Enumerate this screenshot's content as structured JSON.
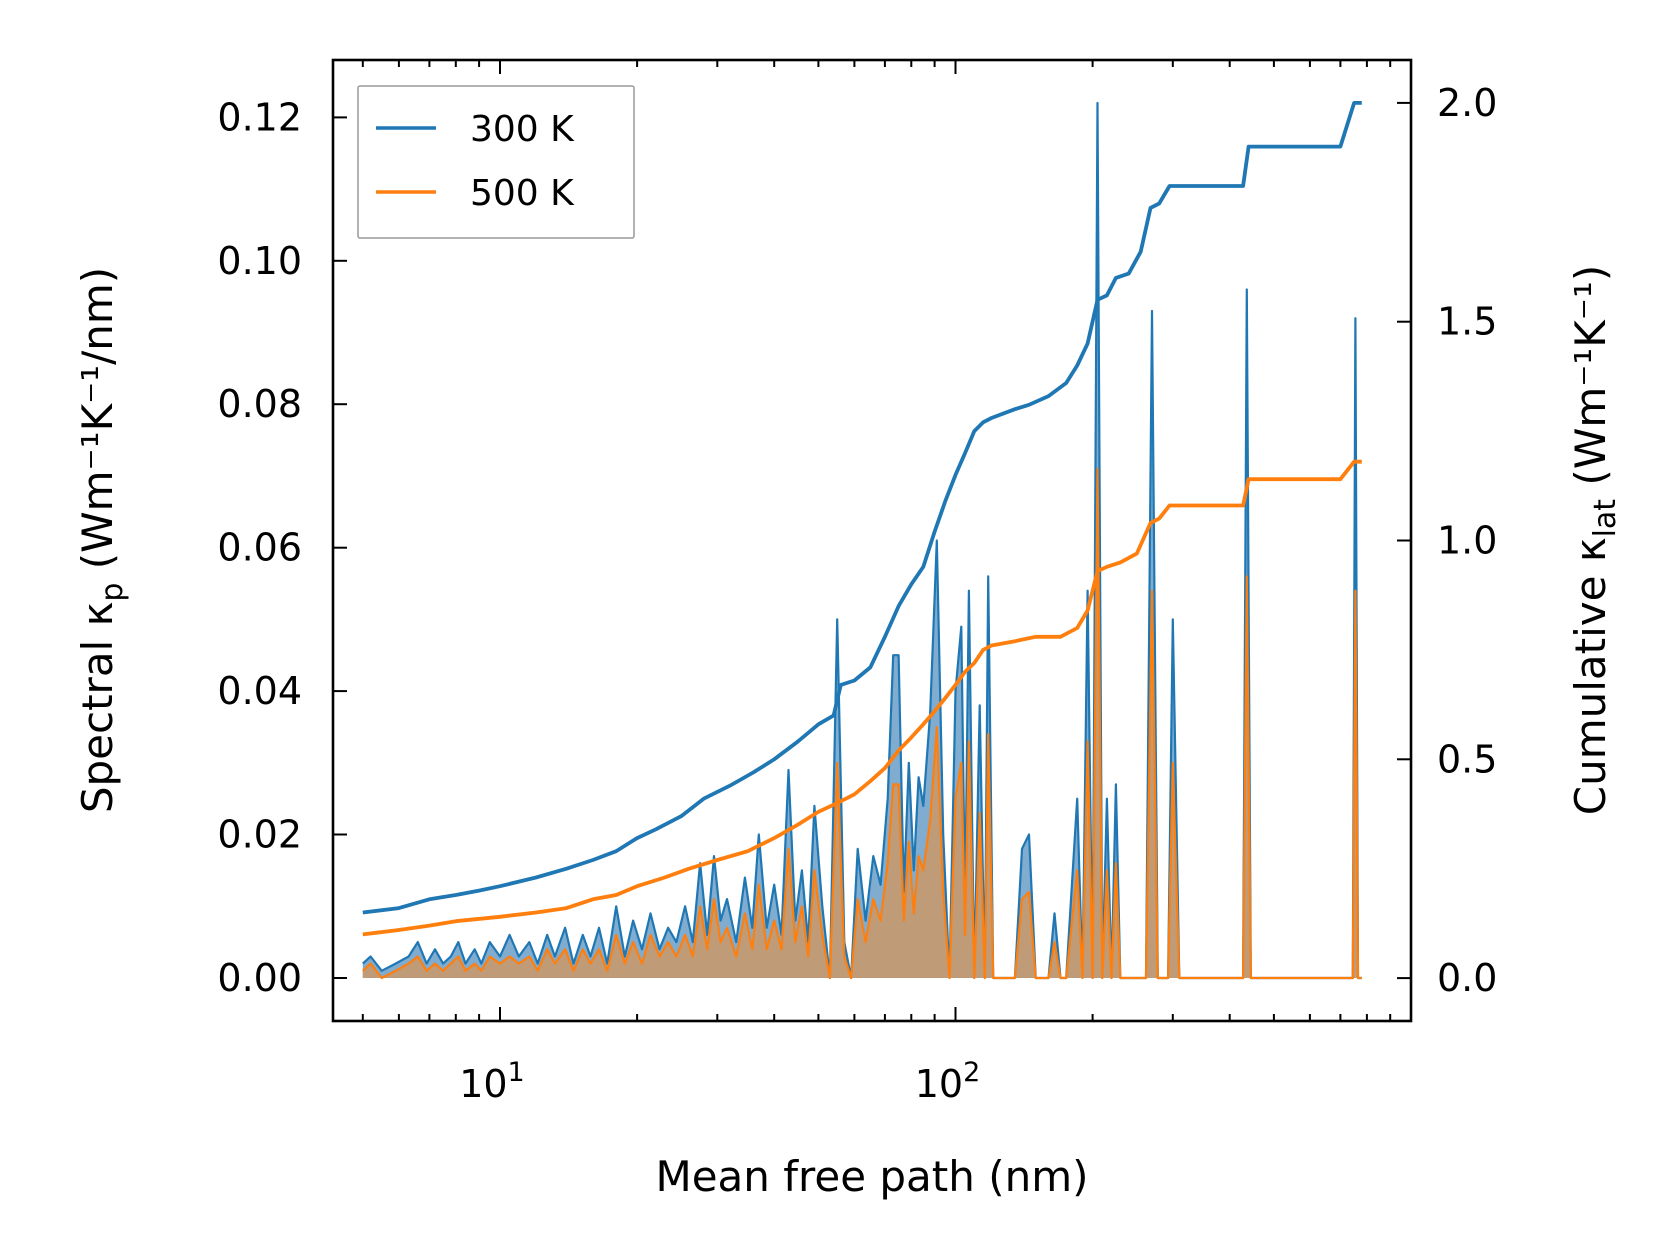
{
  "chart_data": {
    "type": "line",
    "title": "",
    "xlabel": "Mean free path (nm)",
    "ylabel_left": "Spectral κ",
    "ylabel_left_sub": "p",
    "ylabel_left_units": "(Wm⁻¹K⁻¹/nm)",
    "ylabel_right": "Cumulative κ",
    "ylabel_right_sub": "lat",
    "ylabel_right_units": "(Wm⁻¹K⁻¹)",
    "xscale": "log",
    "xlim": [
      4.3,
      1000
    ],
    "ylim_left": [
      -0.006,
      0.128
    ],
    "ylim_right": [
      -0.098,
      2.098
    ],
    "x_ticks": [
      {
        "value": 10,
        "base": "10",
        "exp": "1"
      },
      {
        "value": 100,
        "base": "10",
        "exp": "2"
      }
    ],
    "y_ticks_left": [
      "0.00",
      "0.02",
      "0.04",
      "0.06",
      "0.08",
      "0.10",
      "0.12"
    ],
    "y_ticks_right": [
      "0.0",
      "0.5",
      "1.0",
      "1.5",
      "2.0"
    ],
    "legend": {
      "placement": "top-left",
      "entries": [
        "300 K",
        "500 K"
      ]
    },
    "colors": {
      "300K": "#1f77b4",
      "500K": "#ff7f0e",
      "fill_300K": "#6a9ec8",
      "fill_500K": "#c29a72"
    },
    "spectral_300K": [
      [
        5.0,
        0.002
      ],
      [
        5.2,
        0.003
      ],
      [
        5.5,
        0.001
      ],
      [
        5.9,
        0.002
      ],
      [
        6.3,
        0.003
      ],
      [
        6.6,
        0.005
      ],
      [
        6.9,
        0.002
      ],
      [
        7.2,
        0.004
      ],
      [
        7.5,
        0.002
      ],
      [
        7.8,
        0.003
      ],
      [
        8.1,
        0.005
      ],
      [
        8.4,
        0.002
      ],
      [
        8.8,
        0.004
      ],
      [
        9.1,
        0.002
      ],
      [
        9.5,
        0.005
      ],
      [
        10.0,
        0.003
      ],
      [
        10.5,
        0.006
      ],
      [
        11.0,
        0.003
      ],
      [
        11.6,
        0.005
      ],
      [
        12.1,
        0.002
      ],
      [
        12.7,
        0.006
      ],
      [
        13.2,
        0.003
      ],
      [
        13.9,
        0.007
      ],
      [
        14.5,
        0.002
      ],
      [
        15.2,
        0.006
      ],
      [
        15.8,
        0.003
      ],
      [
        16.5,
        0.007
      ],
      [
        17.2,
        0.002
      ],
      [
        18.0,
        0.01
      ],
      [
        18.8,
        0.003
      ],
      [
        19.6,
        0.008
      ],
      [
        20.5,
        0.004
      ],
      [
        21.4,
        0.009
      ],
      [
        22.4,
        0.004
      ],
      [
        23.4,
        0.007
      ],
      [
        24.4,
        0.005
      ],
      [
        25.5,
        0.01
      ],
      [
        26.5,
        0.005
      ],
      [
        27.5,
        0.016
      ],
      [
        28.5,
        0.006
      ],
      [
        29.5,
        0.017
      ],
      [
        30.5,
        0.008
      ],
      [
        31.5,
        0.011
      ],
      [
        33.0,
        0.005
      ],
      [
        34.5,
        0.014
      ],
      [
        35.8,
        0.007
      ],
      [
        37.0,
        0.02
      ],
      [
        38.5,
        0.007
      ],
      [
        40.0,
        0.013
      ],
      [
        41.5,
        0.006
      ],
      [
        43.0,
        0.029
      ],
      [
        44.5,
        0.008
      ],
      [
        46.0,
        0.015
      ],
      [
        47.5,
        0.005
      ],
      [
        49.0,
        0.024
      ],
      [
        51.0,
        0.01
      ],
      [
        53.0,
        0.0
      ],
      [
        55.0,
        0.05
      ],
      [
        57.0,
        0.005
      ],
      [
        59.0,
        0.0
      ],
      [
        61.0,
        0.018
      ],
      [
        63.5,
        0.008
      ],
      [
        66.0,
        0.017
      ],
      [
        68.5,
        0.013
      ],
      [
        71.0,
        0.025
      ],
      [
        73.0,
        0.045
      ],
      [
        75.0,
        0.045
      ],
      [
        77.0,
        0.012
      ],
      [
        79.0,
        0.03
      ],
      [
        81.0,
        0.015
      ],
      [
        83.0,
        0.028
      ],
      [
        85.0,
        0.024
      ],
      [
        88.0,
        0.037
      ],
      [
        91.0,
        0.061
      ],
      [
        94.0,
        0.02
      ],
      [
        97.0,
        0.0
      ],
      [
        100.0,
        0.04
      ],
      [
        103.0,
        0.049
      ],
      [
        105.0,
        0.01
      ],
      [
        107.0,
        0.054
      ],
      [
        110.0,
        0.0
      ],
      [
        113.0,
        0.038
      ],
      [
        116.0,
        0.0
      ],
      [
        118.0,
        0.056
      ],
      [
        121.0,
        0.0
      ],
      [
        125.0,
        0.0
      ],
      [
        130.0,
        0.0
      ],
      [
        135.0,
        0.0
      ],
      [
        140.0,
        0.018
      ],
      [
        145.0,
        0.02
      ],
      [
        150.0,
        0.0
      ],
      [
        155.0,
        0.0
      ],
      [
        160.0,
        0.0
      ],
      [
        165.0,
        0.009
      ],
      [
        170.0,
        0.0
      ],
      [
        175.0,
        0.0
      ],
      [
        185.0,
        0.025
      ],
      [
        190.0,
        0.0
      ],
      [
        195.0,
        0.054
      ],
      [
        200.0,
        0.0
      ],
      [
        205.0,
        0.122
      ],
      [
        210.0,
        0.0
      ],
      [
        215.0,
        0.025
      ],
      [
        220.0,
        0.0
      ],
      [
        225.0,
        0.027
      ],
      [
        230.0,
        0.0
      ],
      [
        240.0,
        0.0
      ],
      [
        250.0,
        0.0
      ],
      [
        262.0,
        0.0
      ],
      [
        270.0,
        0.093
      ],
      [
        278.0,
        0.0
      ],
      [
        285.0,
        0.0
      ],
      [
        293.0,
        0.0
      ],
      [
        300.0,
        0.05
      ],
      [
        310.0,
        0.0
      ],
      [
        330.0,
        0.0
      ],
      [
        360.0,
        0.0
      ],
      [
        400.0,
        0.0
      ],
      [
        428.0,
        0.0
      ],
      [
        436.0,
        0.096
      ],
      [
        445.0,
        0.0
      ],
      [
        500.0,
        0.0
      ],
      [
        600.0,
        0.0
      ],
      [
        700.0,
        0.0
      ],
      [
        745.0,
        0.0
      ],
      [
        755.0,
        0.092
      ],
      [
        765.0,
        0.0
      ],
      [
        780.0,
        0.0
      ]
    ],
    "spectral_500K": [
      [
        5.0,
        0.001
      ],
      [
        5.2,
        0.002
      ],
      [
        5.5,
        0.0
      ],
      [
        5.9,
        0.001
      ],
      [
        6.3,
        0.002
      ],
      [
        6.6,
        0.003
      ],
      [
        6.9,
        0.001
      ],
      [
        7.2,
        0.002
      ],
      [
        7.5,
        0.001
      ],
      [
        7.8,
        0.002
      ],
      [
        8.1,
        0.003
      ],
      [
        8.4,
        0.001
      ],
      [
        8.8,
        0.002
      ],
      [
        9.1,
        0.001
      ],
      [
        9.5,
        0.003
      ],
      [
        10.0,
        0.002
      ],
      [
        10.5,
        0.003
      ],
      [
        11.0,
        0.002
      ],
      [
        11.6,
        0.003
      ],
      [
        12.1,
        0.001
      ],
      [
        12.7,
        0.004
      ],
      [
        13.2,
        0.002
      ],
      [
        13.9,
        0.004
      ],
      [
        14.5,
        0.001
      ],
      [
        15.2,
        0.004
      ],
      [
        15.8,
        0.002
      ],
      [
        16.5,
        0.004
      ],
      [
        17.2,
        0.001
      ],
      [
        18.0,
        0.006
      ],
      [
        18.8,
        0.002
      ],
      [
        19.6,
        0.005
      ],
      [
        20.5,
        0.002
      ],
      [
        21.4,
        0.006
      ],
      [
        22.4,
        0.003
      ],
      [
        23.4,
        0.005
      ],
      [
        24.4,
        0.003
      ],
      [
        25.5,
        0.006
      ],
      [
        26.5,
        0.003
      ],
      [
        27.5,
        0.01
      ],
      [
        28.5,
        0.004
      ],
      [
        29.5,
        0.011
      ],
      [
        30.5,
        0.005
      ],
      [
        31.5,
        0.007
      ],
      [
        33.0,
        0.003
      ],
      [
        34.5,
        0.009
      ],
      [
        35.8,
        0.004
      ],
      [
        37.0,
        0.013
      ],
      [
        38.5,
        0.004
      ],
      [
        40.0,
        0.008
      ],
      [
        41.5,
        0.004
      ],
      [
        43.0,
        0.018
      ],
      [
        44.5,
        0.005
      ],
      [
        46.0,
        0.01
      ],
      [
        47.5,
        0.003
      ],
      [
        49.0,
        0.015
      ],
      [
        51.0,
        0.006
      ],
      [
        53.0,
        0.0
      ],
      [
        55.0,
        0.03
      ],
      [
        57.0,
        0.003
      ],
      [
        59.0,
        0.0
      ],
      [
        61.0,
        0.011
      ],
      [
        63.5,
        0.005
      ],
      [
        66.0,
        0.011
      ],
      [
        68.5,
        0.008
      ],
      [
        71.0,
        0.016
      ],
      [
        73.0,
        0.027
      ],
      [
        75.0,
        0.027
      ],
      [
        77.0,
        0.008
      ],
      [
        79.0,
        0.019
      ],
      [
        81.0,
        0.009
      ],
      [
        83.0,
        0.017
      ],
      [
        85.0,
        0.015
      ],
      [
        88.0,
        0.022
      ],
      [
        91.0,
        0.035
      ],
      [
        94.0,
        0.012
      ],
      [
        97.0,
        0.0
      ],
      [
        100.0,
        0.025
      ],
      [
        103.0,
        0.03
      ],
      [
        105.0,
        0.006
      ],
      [
        107.0,
        0.033
      ],
      [
        110.0,
        0.0
      ],
      [
        113.0,
        0.023
      ],
      [
        116.0,
        0.0
      ],
      [
        118.0,
        0.034
      ],
      [
        121.0,
        0.0
      ],
      [
        125.0,
        0.0
      ],
      [
        130.0,
        0.0
      ],
      [
        135.0,
        0.0
      ],
      [
        140.0,
        0.011
      ],
      [
        145.0,
        0.012
      ],
      [
        150.0,
        0.0
      ],
      [
        155.0,
        0.0
      ],
      [
        160.0,
        0.0
      ],
      [
        165.0,
        0.005
      ],
      [
        170.0,
        0.0
      ],
      [
        175.0,
        0.0
      ],
      [
        185.0,
        0.015
      ],
      [
        190.0,
        0.0
      ],
      [
        195.0,
        0.033
      ],
      [
        200.0,
        0.0
      ],
      [
        205.0,
        0.071
      ],
      [
        210.0,
        0.0
      ],
      [
        215.0,
        0.015
      ],
      [
        220.0,
        0.0
      ],
      [
        225.0,
        0.016
      ],
      [
        230.0,
        0.0
      ],
      [
        240.0,
        0.0
      ],
      [
        250.0,
        0.0
      ],
      [
        262.0,
        0.0
      ],
      [
        270.0,
        0.054
      ],
      [
        278.0,
        0.0
      ],
      [
        285.0,
        0.0
      ],
      [
        293.0,
        0.0
      ],
      [
        300.0,
        0.03
      ],
      [
        310.0,
        0.0
      ],
      [
        330.0,
        0.0
      ],
      [
        360.0,
        0.0
      ],
      [
        400.0,
        0.0
      ],
      [
        428.0,
        0.0
      ],
      [
        436.0,
        0.056
      ],
      [
        445.0,
        0.0
      ],
      [
        500.0,
        0.0
      ],
      [
        600.0,
        0.0
      ],
      [
        700.0,
        0.0
      ],
      [
        745.0,
        0.0
      ],
      [
        755.0,
        0.054
      ],
      [
        765.0,
        0.0
      ],
      [
        780.0,
        0.0
      ]
    ],
    "cumulative_300K": [
      [
        5.0,
        0.15
      ],
      [
        6.0,
        0.16
      ],
      [
        7.0,
        0.18
      ],
      [
        8.0,
        0.19
      ],
      [
        9.0,
        0.2
      ],
      [
        10.0,
        0.21
      ],
      [
        12.0,
        0.23
      ],
      [
        14.0,
        0.25
      ],
      [
        16.0,
        0.27
      ],
      [
        18.0,
        0.29
      ],
      [
        20.0,
        0.32
      ],
      [
        22.0,
        0.34
      ],
      [
        25.0,
        0.37
      ],
      [
        28.0,
        0.41
      ],
      [
        32.0,
        0.44
      ],
      [
        36.0,
        0.47
      ],
      [
        40.0,
        0.5
      ],
      [
        45.0,
        0.54
      ],
      [
        50.0,
        0.58
      ],
      [
        54.0,
        0.6
      ],
      [
        56.0,
        0.67
      ],
      [
        60.0,
        0.68
      ],
      [
        65.0,
        0.71
      ],
      [
        70.0,
        0.78
      ],
      [
        75.0,
        0.85
      ],
      [
        80.0,
        0.9
      ],
      [
        85.0,
        0.94
      ],
      [
        90.0,
        1.02
      ],
      [
        95.0,
        1.09
      ],
      [
        100.0,
        1.15
      ],
      [
        105.0,
        1.2
      ],
      [
        110.0,
        1.25
      ],
      [
        115.0,
        1.27
      ],
      [
        120.0,
        1.28
      ],
      [
        135.0,
        1.3
      ],
      [
        145.0,
        1.31
      ],
      [
        160.0,
        1.33
      ],
      [
        175.0,
        1.36
      ],
      [
        185.0,
        1.4
      ],
      [
        195.0,
        1.45
      ],
      [
        205.0,
        1.55
      ],
      [
        215.0,
        1.56
      ],
      [
        225.0,
        1.6
      ],
      [
        240.0,
        1.61
      ],
      [
        255.0,
        1.66
      ],
      [
        268.0,
        1.76
      ],
      [
        280.0,
        1.77
      ],
      [
        295.0,
        1.81
      ],
      [
        330.0,
        1.81
      ],
      [
        428.0,
        1.81
      ],
      [
        440.0,
        1.9
      ],
      [
        500.0,
        1.9
      ],
      [
        700.0,
        1.9
      ],
      [
        750.0,
        2.0
      ],
      [
        780.0,
        2.0
      ]
    ],
    "cumulative_500K": [
      [
        5.0,
        0.1
      ],
      [
        6.0,
        0.11
      ],
      [
        7.0,
        0.12
      ],
      [
        8.0,
        0.13
      ],
      [
        10.0,
        0.14
      ],
      [
        12.0,
        0.15
      ],
      [
        14.0,
        0.16
      ],
      [
        16.0,
        0.18
      ],
      [
        18.0,
        0.19
      ],
      [
        20.0,
        0.21
      ],
      [
        23.0,
        0.23
      ],
      [
        26.0,
        0.25
      ],
      [
        30.0,
        0.27
      ],
      [
        35.0,
        0.29
      ],
      [
        40.0,
        0.32
      ],
      [
        45.0,
        0.35
      ],
      [
        50.0,
        0.38
      ],
      [
        55.0,
        0.4
      ],
      [
        60.0,
        0.42
      ],
      [
        65.0,
        0.45
      ],
      [
        70.0,
        0.48
      ],
      [
        75.0,
        0.52
      ],
      [
        80.0,
        0.55
      ],
      [
        85.0,
        0.58
      ],
      [
        90.0,
        0.61
      ],
      [
        95.0,
        0.64
      ],
      [
        100.0,
        0.67
      ],
      [
        105.0,
        0.7
      ],
      [
        110.0,
        0.72
      ],
      [
        115.0,
        0.75
      ],
      [
        120.0,
        0.76
      ],
      [
        135.0,
        0.77
      ],
      [
        150.0,
        0.78
      ],
      [
        170.0,
        0.78
      ],
      [
        185.0,
        0.8
      ],
      [
        195.0,
        0.84
      ],
      [
        205.0,
        0.93
      ],
      [
        215.0,
        0.94
      ],
      [
        230.0,
        0.95
      ],
      [
        250.0,
        0.97
      ],
      [
        268.0,
        1.04
      ],
      [
        280.0,
        1.05
      ],
      [
        295.0,
        1.08
      ],
      [
        330.0,
        1.08
      ],
      [
        428.0,
        1.08
      ],
      [
        440.0,
        1.14
      ],
      [
        500.0,
        1.14
      ],
      [
        700.0,
        1.14
      ],
      [
        750.0,
        1.18
      ],
      [
        780.0,
        1.18
      ]
    ]
  }
}
